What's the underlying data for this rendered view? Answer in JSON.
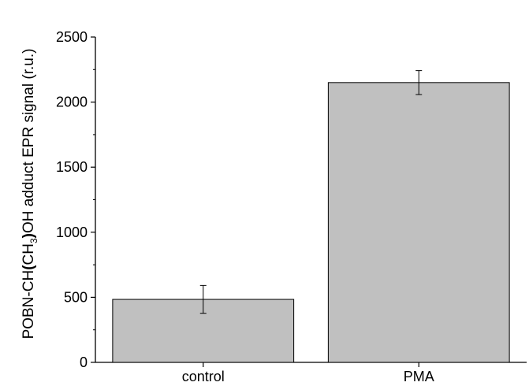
{
  "chart_data": {
    "type": "bar",
    "categories": [
      "control",
      "PMA"
    ],
    "values": [
      484,
      2150
    ],
    "errors": [
      107,
      92
    ],
    "ylabel": {
      "part1": "POBN-CH",
      "paren_open": "(",
      "ch": "CH",
      "sub": "3",
      "paren_close": ")",
      "part2": "OH adduct EPR signal (r.u.)"
    },
    "xlabel": "",
    "title": "",
    "ylim": [
      0,
      2500
    ],
    "yticks": [
      0,
      500,
      1000,
      1500,
      2000,
      2500
    ],
    "bar_color": "#c0c0c0",
    "grid": false
  }
}
